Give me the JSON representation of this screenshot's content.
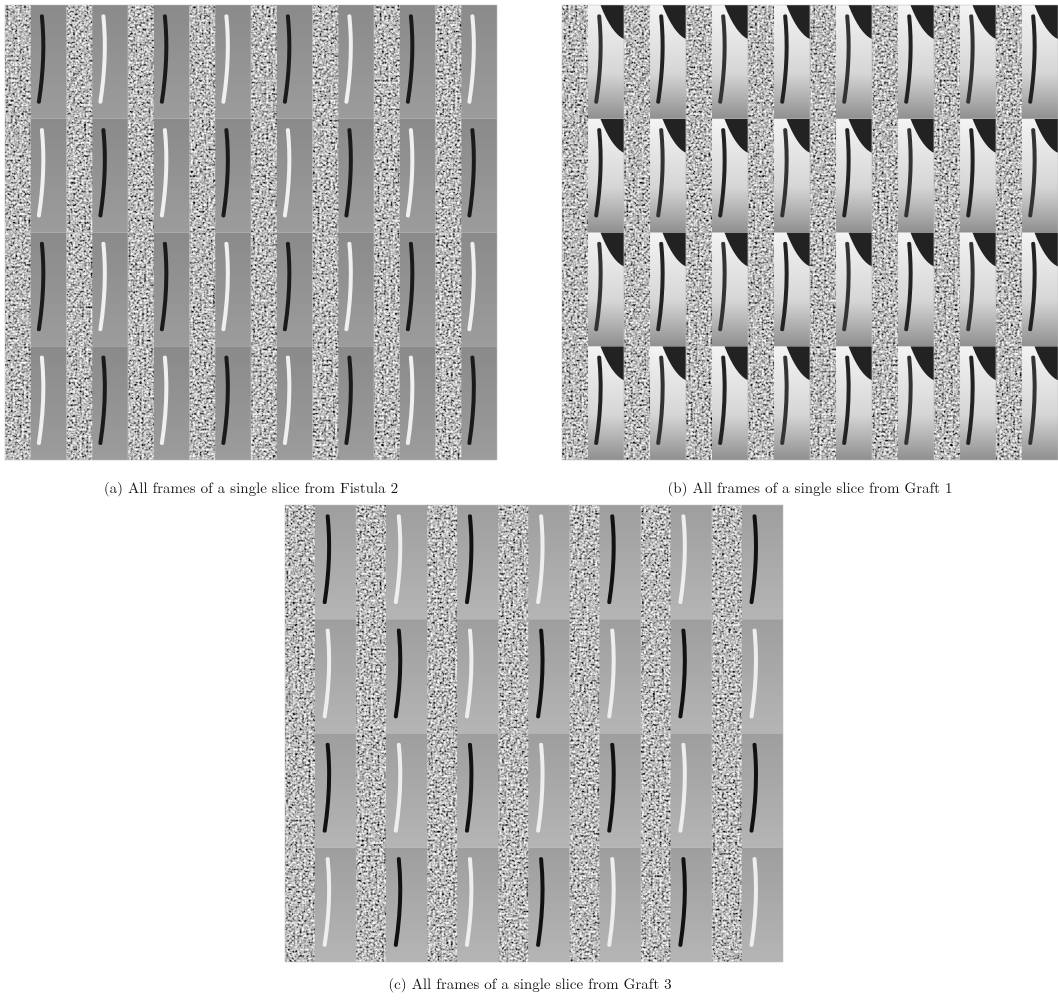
{
  "figures": [
    {
      "caption": "(a) All frames of a single slice from Fistula 2"
    },
    {
      "caption": "(b) All frames of a single slice from Graft 1"
    },
    {
      "caption": "(c) All frames of a single slice from Graft 3"
    }
  ]
}
